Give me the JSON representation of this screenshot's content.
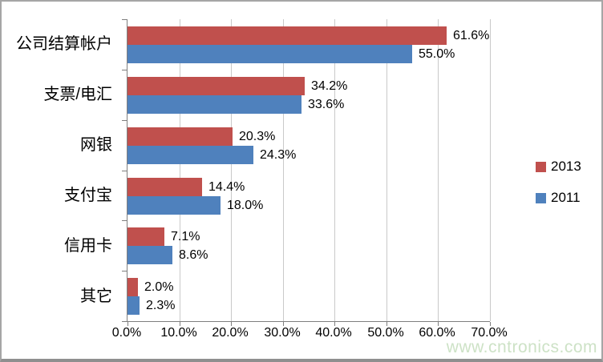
{
  "chart_data": {
    "type": "bar",
    "orientation": "horizontal",
    "title": "",
    "xlabel": "",
    "ylabel": "",
    "categories": [
      "公司结算帐户",
      "支票/电汇",
      "网银",
      "支付宝",
      "信用卡",
      "其它"
    ],
    "series": [
      {
        "name": "2013",
        "color": "#C0504D",
        "values": [
          61.6,
          34.2,
          20.3,
          14.4,
          7.1,
          2.0
        ]
      },
      {
        "name": "2011",
        "color": "#4F81BD",
        "values": [
          55.0,
          33.6,
          24.3,
          18.0,
          8.6,
          2.3
        ]
      }
    ],
    "value_label_format": "percent_one_decimal",
    "xlim": [
      0,
      70
    ],
    "x_tick_labels": [
      "0.0%",
      "10.0%",
      "20.0%",
      "30.0%",
      "40.0%",
      "50.0%",
      "60.0%",
      "70.0%"
    ],
    "grid": true,
    "legend_position": "right"
  },
  "legend": {
    "items": [
      {
        "label": "2013",
        "color": "#C0504D"
      },
      {
        "label": "2011",
        "color": "#4F81BD"
      }
    ]
  },
  "watermark": "www.cntronics.com",
  "colors": {
    "series_2013": "#C0504D",
    "series_2011": "#4F81BD",
    "gridline": "#c9c9c9",
    "axis": "#7f7f7f",
    "watermark": "#cde2c6",
    "frame_border": "#a6a6a6",
    "background": "#ffffff"
  }
}
